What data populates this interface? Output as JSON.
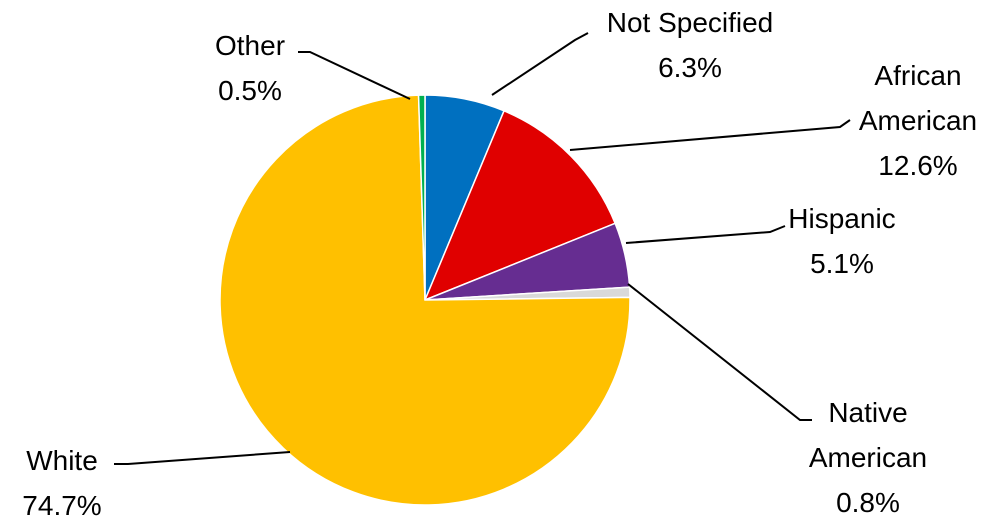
{
  "chart_data": {
    "type": "pie",
    "title": "",
    "units": "%",
    "slices": [
      {
        "name": "Not Specified",
        "value": 6.3,
        "display": "6.3%",
        "color": "#0070C0",
        "label_lines": [
          "Not Specified"
        ]
      },
      {
        "name": "African American",
        "value": 12.6,
        "display": "12.6%",
        "color": "#E00000",
        "label_lines": [
          "African",
          "American"
        ]
      },
      {
        "name": "Hispanic",
        "value": 5.1,
        "display": "5.1%",
        "color": "#662D91",
        "label_lines": [
          "Hispanic"
        ]
      },
      {
        "name": "Native American",
        "value": 0.8,
        "display": "0.8%",
        "color": "#D9D9D9",
        "label_lines": [
          "Native",
          "American"
        ]
      },
      {
        "name": "White",
        "value": 74.7,
        "display": "74.7%",
        "color": "#FFC000",
        "label_lines": [
          "White"
        ]
      },
      {
        "name": "Other",
        "value": 0.5,
        "display": "0.5%",
        "color": "#00B050",
        "label_lines": [
          "Other"
        ]
      }
    ]
  }
}
